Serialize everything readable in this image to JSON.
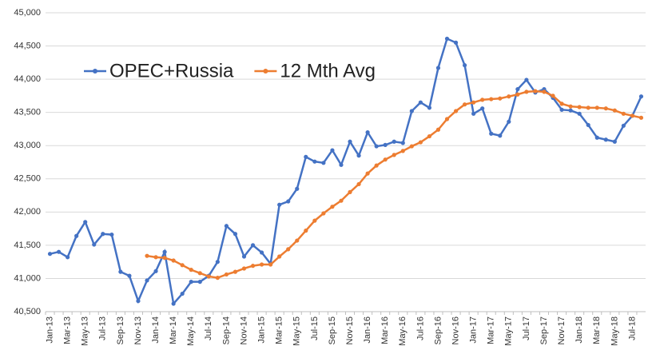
{
  "chart_data": {
    "type": "line",
    "categories": [
      "Jan-13",
      null,
      "Mar-13",
      null,
      "May-13",
      null,
      "Jul-13",
      null,
      "Sep-13",
      null,
      "Nov-13",
      null,
      "Jan-14",
      null,
      "Mar-14",
      null,
      "May-14",
      null,
      "Jul-14",
      null,
      "Sep-14",
      null,
      "Nov-14",
      null,
      "Jan-15",
      null,
      "Mar-15",
      null,
      "May-15",
      null,
      "Jul-15",
      null,
      "Sep-15",
      null,
      "Nov-15",
      null,
      "Jan-16",
      null,
      "Mar-16",
      null,
      "May-16",
      null,
      "Jul-16",
      null,
      "Sep-16",
      null,
      "Nov-16",
      null,
      "Jan-17",
      null,
      "Mar-17",
      null,
      "May-17",
      null,
      "Jul-17",
      null,
      "Sep-17",
      null,
      "Nov-17",
      null,
      "Jan-18",
      null,
      "Mar-18",
      null,
      "May-18",
      null,
      "Jul-18",
      null
    ],
    "series": [
      {
        "name": "OPEC+Russia",
        "color": "#4472c4",
        "values": [
          41370,
          41400,
          41320,
          41640,
          41850,
          41510,
          41670,
          41660,
          41100,
          41040,
          40660,
          40970,
          41110,
          41400,
          40620,
          40770,
          40950,
          40950,
          41040,
          41250,
          41790,
          41670,
          41330,
          41500,
          41390,
          41220,
          42110,
          42160,
          42350,
          42830,
          42760,
          42740,
          42930,
          42710,
          43060,
          42850,
          43200,
          42990,
          43010,
          43060,
          43040,
          43520,
          43650,
          43570,
          44170,
          44610,
          44550,
          44210,
          43480,
          43560,
          43180,
          43150,
          43360,
          43850,
          43990,
          43800,
          43850,
          43720,
          43540,
          43530,
          43480,
          43310,
          43120,
          43090,
          43060,
          43300,
          43450,
          43740
        ]
      },
      {
        "name": "12 Mth Avg",
        "color": "#ed7d31",
        "values": [
          null,
          null,
          null,
          null,
          null,
          null,
          null,
          null,
          null,
          null,
          null,
          41340,
          41320,
          41310,
          41270,
          41200,
          41130,
          41080,
          41030,
          41010,
          41060,
          41100,
          41150,
          41190,
          41210,
          41210,
          41330,
          41440,
          41570,
          41720,
          41870,
          41980,
          42080,
          42170,
          42300,
          42420,
          42580,
          42700,
          42790,
          42860,
          42920,
          42990,
          43050,
          43140,
          43240,
          43400,
          43520,
          43620,
          43650,
          43690,
          43700,
          43710,
          43740,
          43770,
          43810,
          43820,
          43810,
          43750,
          43630,
          43590,
          43580,
          43570,
          43570,
          43560,
          43530,
          43480,
          43450,
          43420
        ]
      }
    ],
    "ylim": [
      40500,
      45000
    ],
    "yticks": [
      {
        "value": 40500,
        "label": "40,500"
      },
      {
        "value": 41000,
        "label": "41,000"
      },
      {
        "value": 41500,
        "label": "41,500"
      },
      {
        "value": 42000,
        "label": "42,000"
      },
      {
        "value": 42500,
        "label": "42,500"
      },
      {
        "value": 43000,
        "label": "43,000"
      },
      {
        "value": 43500,
        "label": "43,500"
      },
      {
        "value": 44000,
        "label": "44,000"
      },
      {
        "value": 44500,
        "label": "44,500"
      },
      {
        "value": 45000,
        "label": "45,000"
      }
    ],
    "grid": true
  }
}
